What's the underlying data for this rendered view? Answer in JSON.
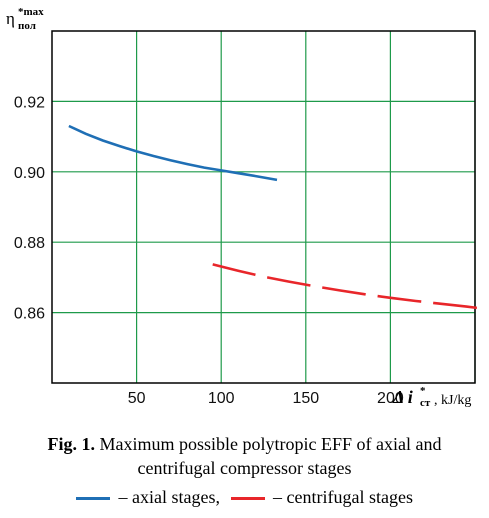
{
  "chart_data": {
    "type": "line",
    "ylabel": "η",
    "ylabel_sup": "*max",
    "ylabel_sub": "пол",
    "xlabel": "Δ i",
    "xlabel_sup": "*",
    "xlabel_sub": "ст",
    "xunit": ", kJ/kg",
    "xlim": [
      0,
      250
    ],
    "ylim": [
      0.84,
      0.94
    ],
    "xticks": [
      50,
      100,
      150,
      200
    ],
    "yticks": [
      0.86,
      0.88,
      0.9,
      0.92
    ],
    "ytick_labels": [
      "0.86",
      "0.88",
      "0.90",
      "0.92"
    ],
    "xgrid": [
      50,
      100,
      150,
      200,
      250
    ],
    "ygrid": [
      0.86,
      0.88,
      0.9,
      0.92
    ],
    "grid": true,
    "series": [
      {
        "name": "axial stages",
        "color": "#1f6fb5",
        "style": "solid",
        "x": [
          10,
          20,
          30,
          40,
          50,
          60,
          70,
          80,
          90,
          100,
          110,
          120,
          133
        ],
        "y": [
          0.913,
          0.9108,
          0.9089,
          0.9073,
          0.9058,
          0.9045,
          0.9033,
          0.9022,
          0.9012,
          0.9004,
          0.8996,
          0.8988,
          0.8977
        ]
      },
      {
        "name": "centrifugal stages",
        "color": "#e8262a",
        "style": "dashed",
        "x": [
          95,
          110,
          125,
          140,
          155,
          170,
          185,
          200,
          215,
          230,
          245,
          255
        ],
        "y": [
          0.8737,
          0.8719,
          0.8702,
          0.8688,
          0.8675,
          0.8663,
          0.8652,
          0.8642,
          0.8633,
          0.8625,
          0.8617,
          0.8611
        ]
      }
    ]
  },
  "caption": {
    "fig_label": "Fig. 1.",
    "text_line1": " Maximum possible polytropic EFF of axial and",
    "text_line2": "centrifugal compressor stages"
  },
  "legend": {
    "items": [
      {
        "label": " – axial stages,",
        "color": "#1f6fb5"
      },
      {
        "label": " – centrifugal stages",
        "color": "#e8262a"
      }
    ]
  }
}
